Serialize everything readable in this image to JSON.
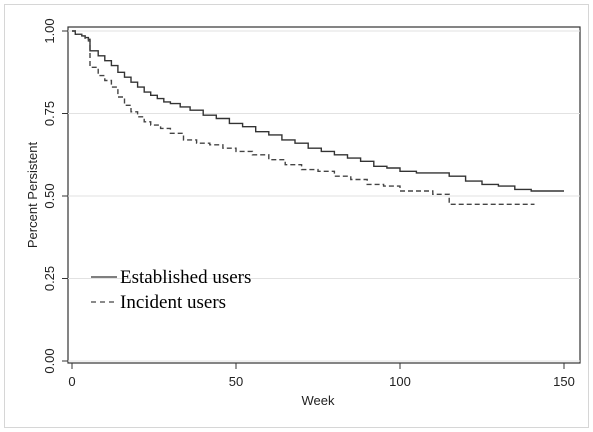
{
  "chart_data": {
    "type": "line",
    "title": "",
    "xlabel": "Week",
    "ylabel": "Percent Persistent",
    "xlim": [
      0,
      150
    ],
    "ylim": [
      0,
      1
    ],
    "x_ticks": [
      "0",
      "50",
      "100",
      "150"
    ],
    "y_ticks": [
      "0.00",
      "0.25",
      "0.50",
      "0.75",
      "1.00"
    ],
    "grid": "horizontal",
    "legend_position": "lower-left",
    "series": [
      {
        "name": "Established users",
        "style": "solid",
        "color": "#333333",
        "x": [
          0,
          1,
          2,
          3,
          4,
          5,
          5.5,
          8,
          10,
          12,
          14,
          16,
          18,
          20,
          22,
          24,
          26,
          28,
          30,
          33,
          36,
          40,
          44,
          48,
          52,
          56,
          60,
          64,
          68,
          72,
          76,
          80,
          84,
          88,
          92,
          96,
          100,
          105,
          110,
          115,
          120,
          125,
          130,
          135,
          140,
          145,
          150
        ],
        "y": [
          1.0,
          0.99,
          0.99,
          0.985,
          0.98,
          0.975,
          0.94,
          0.925,
          0.91,
          0.895,
          0.875,
          0.86,
          0.845,
          0.83,
          0.815,
          0.805,
          0.795,
          0.785,
          0.78,
          0.77,
          0.76,
          0.745,
          0.735,
          0.72,
          0.71,
          0.695,
          0.685,
          0.67,
          0.66,
          0.645,
          0.635,
          0.625,
          0.615,
          0.605,
          0.59,
          0.585,
          0.575,
          0.57,
          0.57,
          0.56,
          0.545,
          0.535,
          0.53,
          0.52,
          0.515,
          0.515,
          0.515
        ]
      },
      {
        "name": "Incident users",
        "style": "dashed",
        "color": "#444444",
        "x": [
          0,
          1,
          2,
          3,
          4,
          5,
          5.5,
          8,
          10,
          12,
          14,
          16,
          18,
          20,
          22,
          24,
          27,
          30,
          34,
          38,
          42,
          46,
          50,
          55,
          60,
          65,
          70,
          75,
          80,
          85,
          90,
          95,
          100,
          105,
          110,
          115,
          120,
          125,
          130,
          135,
          141
        ],
        "y": [
          1.0,
          0.99,
          0.99,
          0.985,
          0.975,
          0.97,
          0.89,
          0.865,
          0.85,
          0.83,
          0.8,
          0.775,
          0.755,
          0.74,
          0.725,
          0.715,
          0.705,
          0.69,
          0.67,
          0.66,
          0.655,
          0.645,
          0.635,
          0.625,
          0.61,
          0.595,
          0.58,
          0.575,
          0.56,
          0.55,
          0.535,
          0.53,
          0.515,
          0.515,
          0.505,
          0.475,
          0.475,
          0.475,
          0.475,
          0.475,
          0.475
        ]
      }
    ]
  }
}
